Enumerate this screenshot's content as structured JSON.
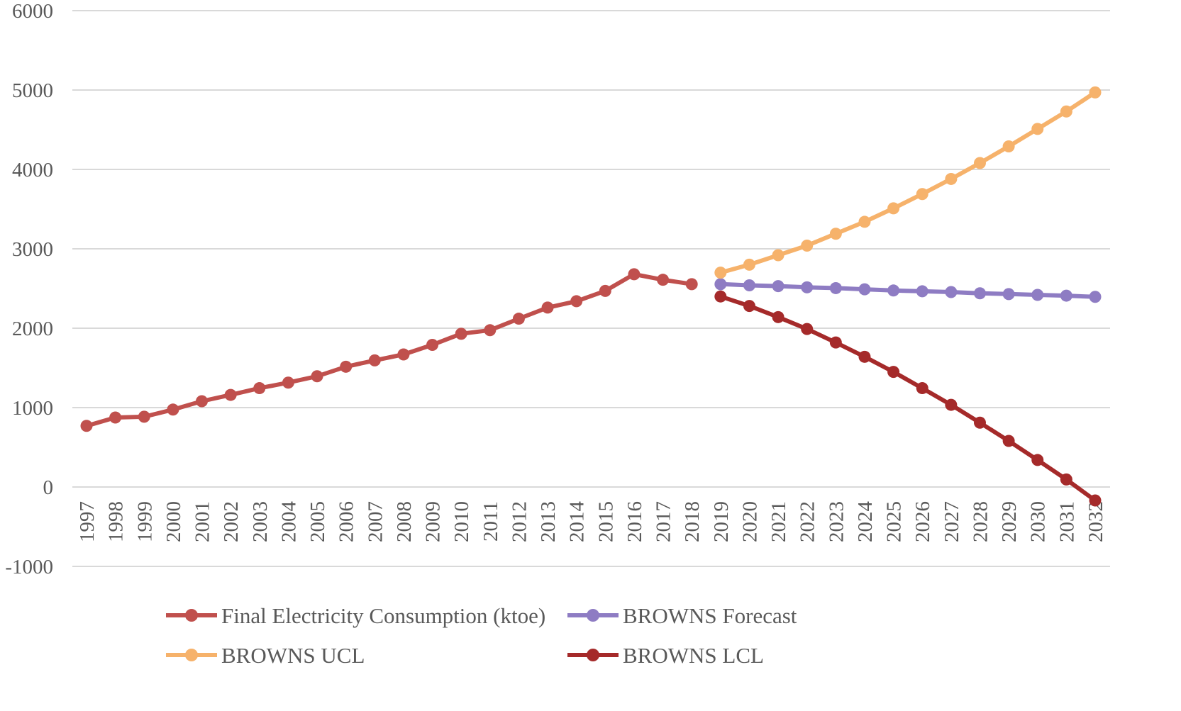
{
  "chart_data": {
    "type": "line",
    "title": "",
    "xlabel": "",
    "ylabel": "",
    "ylim": [
      -1000,
      6000
    ],
    "ytick_step": 1000,
    "grid": true,
    "legend_position": "bottom",
    "x": [
      "1997",
      "1998",
      "1999",
      "2000",
      "2001",
      "2002",
      "2003",
      "2004",
      "2005",
      "2006",
      "2007",
      "2008",
      "2009",
      "2010",
      "2011",
      "2012",
      "2013",
      "2014",
      "2015",
      "2016",
      "2017",
      "2018",
      "2019",
      "2020",
      "2021",
      "2022",
      "2023",
      "2024",
      "2025",
      "2026",
      "2027",
      "2028",
      "2029",
      "2030",
      "2031",
      "2032"
    ],
    "series": [
      {
        "name": "Final Electricity Consumption (ktoe)",
        "color": "#c0504d",
        "values": [
          770,
          875,
          885,
          975,
          1080,
          1160,
          1245,
          1315,
          1395,
          1515,
          1595,
          1670,
          1790,
          1930,
          1975,
          2120,
          2260,
          2340,
          2470,
          2680,
          2610,
          2555,
          null,
          null,
          null,
          null,
          null,
          null,
          null,
          null,
          null,
          null,
          null,
          null,
          null,
          null
        ]
      },
      {
        "name": "BROWNS Forecast",
        "color": "#8e7cc3",
        "values": [
          null,
          null,
          null,
          null,
          null,
          null,
          null,
          null,
          null,
          null,
          null,
          null,
          null,
          null,
          null,
          null,
          null,
          null,
          null,
          null,
          null,
          null,
          2555,
          2540,
          2530,
          2515,
          2505,
          2490,
          2475,
          2465,
          2455,
          2440,
          2430,
          2420,
          2410,
          2395
        ]
      },
      {
        "name": "BROWNS UCL",
        "color": "#f6b26b",
        "values": [
          null,
          null,
          null,
          null,
          null,
          null,
          null,
          null,
          null,
          null,
          null,
          null,
          null,
          null,
          null,
          null,
          null,
          null,
          null,
          null,
          null,
          null,
          2700,
          2800,
          2920,
          3040,
          3190,
          3340,
          3510,
          3690,
          3880,
          4080,
          4290,
          4510,
          4730,
          4970
        ]
      },
      {
        "name": "BROWNS LCL",
        "color": "#a52a2a",
        "values": [
          null,
          null,
          null,
          null,
          null,
          null,
          null,
          null,
          null,
          null,
          null,
          null,
          null,
          null,
          null,
          null,
          null,
          null,
          null,
          null,
          null,
          null,
          2400,
          2280,
          2140,
          1990,
          1820,
          1640,
          1450,
          1245,
          1035,
          810,
          580,
          340,
          95,
          -170
        ]
      }
    ]
  }
}
